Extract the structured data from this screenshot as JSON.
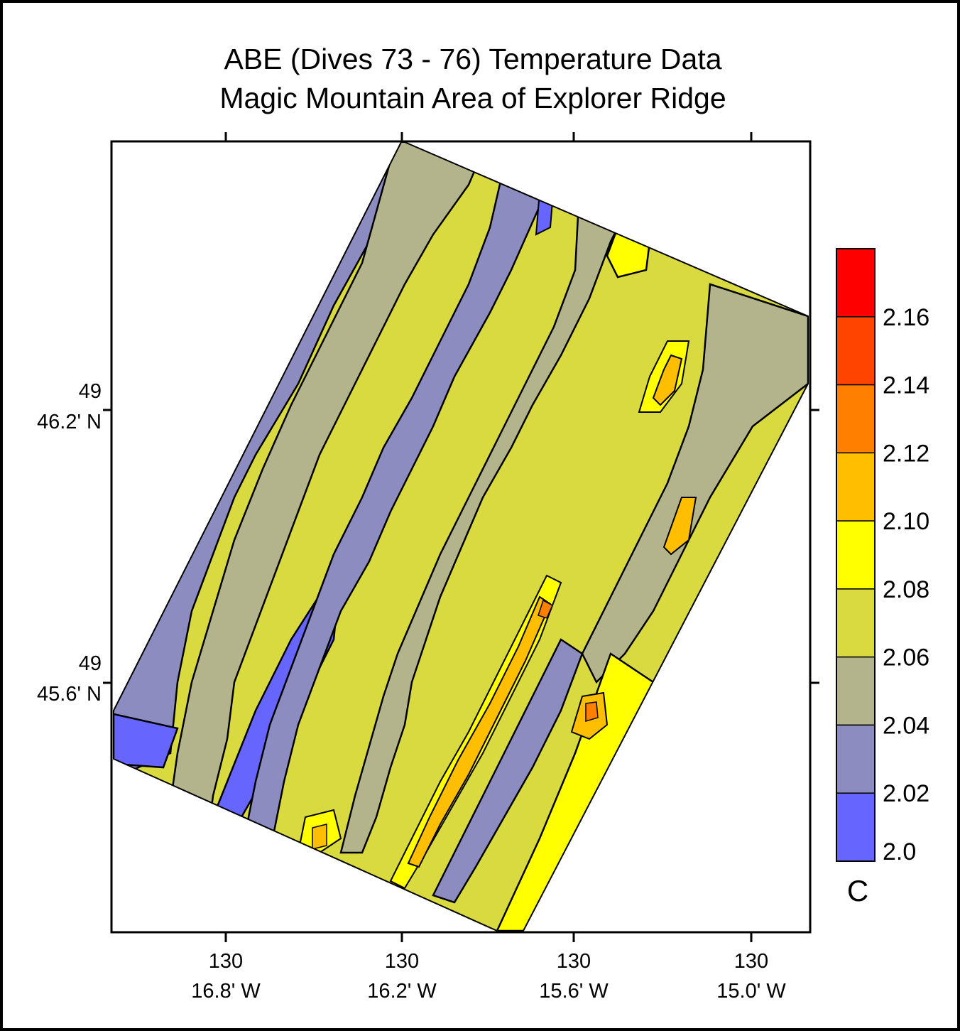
{
  "title": {
    "line1": "ABE (Dives 73 - 76) Temperature Data",
    "line2": "Magic Mountain Area of Explorer Ridge"
  },
  "x_ticks": [
    {
      "deg": "130",
      "min": "16.8' W"
    },
    {
      "deg": "130",
      "min": "16.2' W"
    },
    {
      "deg": "130",
      "min": "15.6' W"
    },
    {
      "deg": "130",
      "min": "15.0' W"
    }
  ],
  "y_ticks": [
    {
      "deg": "49",
      "min": "46.2' N"
    },
    {
      "deg": "49",
      "min": "45.6' N"
    }
  ],
  "colorbar": {
    "unit": "C",
    "labels": [
      "2.16",
      "2.14",
      "2.12",
      "2.10",
      "2.08",
      "2.06",
      "2.04",
      "2.02",
      "2.0"
    ],
    "colors": [
      "#ff0000",
      "#ff4400",
      "#ff8000",
      "#ffbf00",
      "#ffff00",
      "#d9d940",
      "#b3b38c",
      "#8c8cc0",
      "#6666ff"
    ]
  },
  "colors": {
    "very_cold": "#6666ff",
    "cold": "#8c8cc0",
    "neutral": "#b3b38c",
    "warm": "#d9d940",
    "warmer": "#ffff00",
    "hot": "#ffbf00",
    "hotter": "#ff8000"
  }
}
